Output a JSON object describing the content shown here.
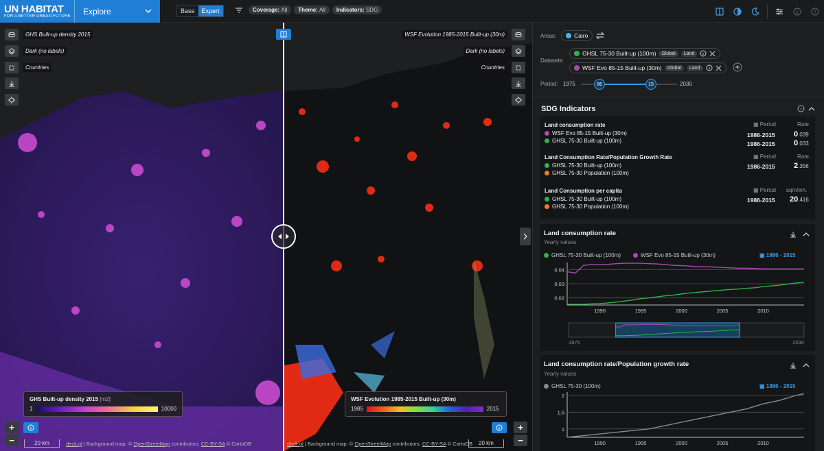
{
  "header": {
    "logo_line1": "UN HABITAT",
    "logo_line2": "FOR A BETTER URBAN FUTURE",
    "app_menu": "Explore",
    "modes": [
      "Base",
      "Expert"
    ],
    "chips": [
      {
        "label": "Coverage:",
        "value": "All"
      },
      {
        "label": "Theme:",
        "value": "All"
      },
      {
        "label": "Indicators:",
        "value": "SDG"
      }
    ]
  },
  "map": {
    "left_layers": [
      "GHS Built-up density 2015",
      "Dark (no labels)",
      "Countries"
    ],
    "right_layers": [
      "WSF Evolution 1985-2015 Built-up (30m)",
      "Dark (no labels)",
      "Countries"
    ],
    "left_legend": {
      "title": "GHS Built-up density 2015",
      "unit": "[m2]",
      "min": "1",
      "max": "10000"
    },
    "right_legend": {
      "title": "WSF Evolution 1985-2015 Built-up (30m)",
      "min": "1985",
      "max": "2015"
    },
    "scale_left": "20 km",
    "scale_right": "20 km",
    "attrib_left": {
      "lib": "deck.gl",
      "text": "| Background map: ©",
      "osm": "OpenStreetMap",
      "contrib": "contributors,",
      "license": "CC-BY-SA",
      "carto": "© CartoDB"
    },
    "attrib_right": {
      "lib": "deck.gl",
      "text": "| Background map: ©",
      "osm": "OpenStreetMap",
      "contrib": "contributors,",
      "license": "CC-BY-SA",
      "carto": "© CartoDB"
    },
    "zoom_in": "+",
    "zoom_out": "−"
  },
  "panel": {
    "areas_label": "Areas:",
    "area": "Cairo",
    "datasets_label": "Datasets:",
    "datasets": [
      {
        "name": "GHSL 75-30 Built-up (100m)",
        "tags": [
          "Global",
          "Land"
        ],
        "color": "#2fb34a"
      },
      {
        "name": "WSF Evo 85-15 Built-up (30m)",
        "tags": [
          "Global",
          "Land"
        ],
        "color": "#a84bb0"
      }
    ],
    "period_label": "Period:",
    "period_min": "1975",
    "period_max": "2030",
    "period_from": "86",
    "period_to": "15",
    "sdg_title": "SDG Indicators",
    "indicators": [
      {
        "title": "Land consumption rate",
        "col_period": "Period",
        "col_value": "Rate",
        "series": [
          {
            "name": "WSF Evo 85-15 Built-up (30m)",
            "color": "#a84bb0",
            "period": "1986-2015",
            "int": "0",
            "dec": ".039"
          },
          {
            "name": "GHSL 75-30 Built-up (100m)",
            "color": "#2fb34a",
            "period": "1986-2015",
            "int": "0",
            "dec": ".033"
          }
        ]
      },
      {
        "title": "Land Consumption Rate/Population Growth Rate",
        "col_period": "Period",
        "col_value": "Rate",
        "series": [
          {
            "name": "GHSL 75-30 Built-up (100m)",
            "color": "#2fb34a"
          },
          {
            "name": "GHSL 75-30 Population (100m)",
            "color": "#f07d1e"
          }
        ],
        "period": "1986-2015",
        "int": "2",
        "dec": ".356"
      },
      {
        "title": "Land Consumption per capita",
        "col_period": "Period",
        "col_value": "sqm/inh.",
        "series": [
          {
            "name": "GHSL 75-30 Built-up (100m)",
            "color": "#2fb34a"
          },
          {
            "name": "GHSL 75-30 Population (100m)",
            "color": "#f07d1e"
          }
        ],
        "period": "1986-2015",
        "int": "20",
        "dec": ".416"
      }
    ],
    "chart1": {
      "title": "Land consumption rate",
      "subtitle": "Yearly values",
      "period": "1986 - 2015",
      "legend": [
        {
          "name": "GHSL 75-30 Built-up (100m)",
          "color": "#2fb34a"
        },
        {
          "name": "WSF Evo 85-15 Built-up (30m)",
          "color": "#a84bb0"
        }
      ],
      "brush_left": "1975",
      "brush_right": "2030"
    },
    "chart2": {
      "title": "Land consumption rate/Population growth rate",
      "subtitle": "Yearly values",
      "period": "1986 - 2015",
      "legend": [
        {
          "name": "GHSL 75-30 (100m)",
          "color": "#8a8a8a"
        }
      ]
    }
  },
  "chart_data": [
    {
      "type": "line",
      "title": "Land consumption rate",
      "x": [
        1986,
        1987,
        1988,
        1989,
        1990,
        1991,
        1992,
        1993,
        1994,
        1995,
        1996,
        1997,
        1998,
        1999,
        2000,
        2001,
        2002,
        2003,
        2004,
        2005,
        2006,
        2007,
        2008,
        2009,
        2010,
        2011,
        2012,
        2013,
        2014,
        2015
      ],
      "series": [
        {
          "name": "WSF Evo 85-15 Built-up (30m)",
          "values": [
            0.0385,
            0.0375,
            0.043,
            0.0435,
            0.0435,
            0.0437,
            0.0442,
            0.0445,
            0.0445,
            0.0445,
            0.0442,
            0.044,
            0.0435,
            0.043,
            0.0428,
            0.0425,
            0.042,
            0.042,
            0.0418,
            0.0415,
            0.0412,
            0.041,
            0.041,
            0.0408,
            0.0405,
            0.0405,
            0.0405,
            0.0405,
            0.0405,
            0.0405
          ]
        },
        {
          "name": "GHSL 75-30 Built-up (100m)",
          "values": [
            0.0155,
            0.0155,
            0.0155,
            0.0158,
            0.016,
            0.0165,
            0.017,
            0.0178,
            0.0185,
            0.0195,
            0.02,
            0.0208,
            0.0215,
            0.022,
            0.0228,
            0.0235,
            0.024,
            0.0245,
            0.025,
            0.0255,
            0.026,
            0.0263,
            0.0268,
            0.0272,
            0.028,
            0.0285,
            0.029,
            0.0298,
            0.0305,
            0.031
          ]
        }
      ],
      "ylim": [
        0.015,
        0.045
      ],
      "yticks": [
        0.02,
        0.03,
        0.04
      ],
      "xticks": [
        1990,
        1995,
        2000,
        2005,
        2010
      ],
      "brush_x": [
        1975,
        2030
      ],
      "brush_window": [
        1986,
        2015
      ]
    },
    {
      "type": "line",
      "title": "Land consumption rate/Population growth rate",
      "x": [
        1986,
        1988,
        1990,
        1992,
        1994,
        1996,
        1998,
        2000,
        2002,
        2004,
        2006,
        2008,
        2010,
        2012,
        2014,
        2015
      ],
      "series": [
        {
          "name": "GHSL 75-30 (100m)",
          "values": [
            0.75,
            0.8,
            0.85,
            0.9,
            0.95,
            1.0,
            1.1,
            1.2,
            1.3,
            1.4,
            1.5,
            1.6,
            1.75,
            1.85,
            2.0,
            2.05
          ]
        }
      ],
      "ylim": [
        0.75,
        2.1
      ],
      "yticks": [
        1,
        1.5,
        2
      ],
      "xticks": [
        1990,
        1995,
        2000,
        2005,
        2010
      ]
    }
  ]
}
